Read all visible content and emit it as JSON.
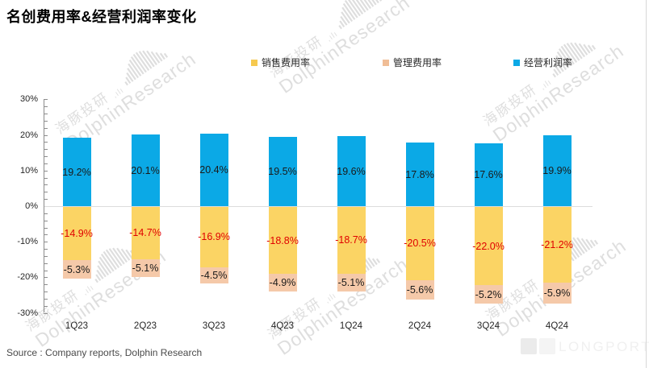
{
  "title": "名创费用率&经营利润率变化",
  "legend": [
    {
      "label": "销售费用率",
      "color": "#F6C94F"
    },
    {
      "label": "管理费用率",
      "color": "#F0BD96"
    },
    {
      "label": "经营利润率",
      "color": "#0BA9E6"
    }
  ],
  "chart_data": {
    "type": "bar",
    "stacked": true,
    "title": "名创费用率&经营利润率变化",
    "categories": [
      "1Q23",
      "2Q23",
      "3Q23",
      "4Q23",
      "1Q24",
      "2Q24",
      "3Q24",
      "4Q24"
    ],
    "series": [
      {
        "name": "经营利润率",
        "color": "#0BA9E6",
        "label_color": "#1a1a1a",
        "values": [
          19.2,
          20.1,
          20.4,
          19.5,
          19.6,
          17.8,
          17.6,
          19.9
        ]
      },
      {
        "name": "销售费用率",
        "color": "#FBD464",
        "label_color": "#e00000",
        "values": [
          -14.9,
          -14.7,
          -16.9,
          -18.8,
          -18.7,
          -20.5,
          -22.0,
          -21.2
        ]
      },
      {
        "name": "管理费用率",
        "color": "#F5C9A9",
        "label_color": "#1a1a1a",
        "values": [
          -5.3,
          -5.1,
          -4.5,
          -4.9,
          -5.1,
          -5.6,
          -5.2,
          -5.9
        ]
      }
    ],
    "y_axis": {
      "min": -30,
      "max": 30,
      "major_step": 10,
      "minor_step": 2,
      "tick_labels": [
        "30%",
        "20%",
        "10%",
        "0%",
        "-10%",
        "-20%",
        "-30%"
      ]
    },
    "value_suffix": "%",
    "grid": "zero-line-only",
    "legend_position": "top"
  },
  "source": "Source : Company reports, Dolphin Research",
  "watermark": {
    "cn": "海豚投研",
    "en": "DolphinResearch"
  },
  "logo": {
    "text": "LONGPORT"
  }
}
